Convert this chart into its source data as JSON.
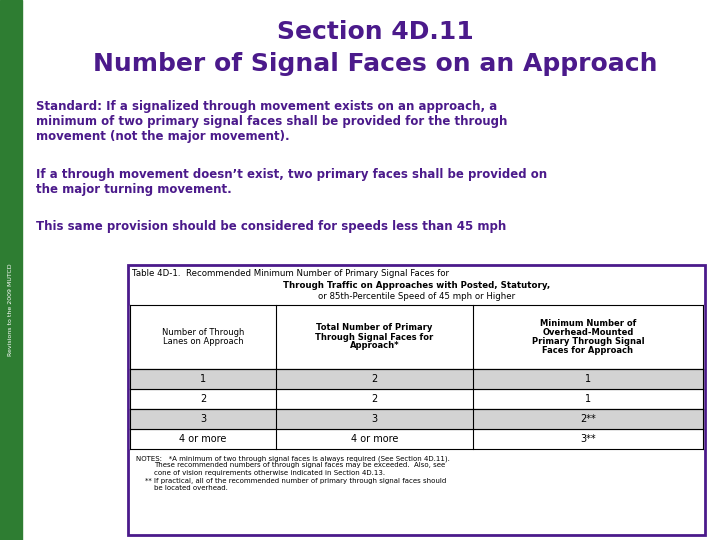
{
  "title_line1": "Section 4D.11",
  "title_line2": "Number of Signal Faces on an Approach",
  "title_color": "#4B1A8B",
  "bg_color": "#FFFFFF",
  "sidebar_color": "#2E7D32",
  "sidebar_text": "Revisions to the 2009 MUTCD",
  "para_color": "#4B1A8B",
  "para1_lines": [
    "Standard: If a signalized through movement exists on an approach, a",
    "minimum of two primary signal faces shall be provided for the through",
    "movement (not the major movement)."
  ],
  "para2_lines": [
    "If a through movement doesn’t exist, two primary faces shall be provided on",
    "the major turning movement."
  ],
  "para3": "This same provision should be considered for speeds less than 45 mph",
  "table_title_line1": "Table 4D-1.  Recommended Minimum Number of Primary Signal Faces for",
  "table_title_line2": "Through Traffic on Approaches with Posted, Statutory,",
  "table_title_line3": "or 85th-Percentile Speed of 45 mph or Higher",
  "table_border_color": "#4B1A8B",
  "col_headers": [
    "Number of Through\nLanes on Approach",
    "Total Number of Primary\nThrough Signal Faces for\nApproach*",
    "Minimum Number of\nOverhead-Mounted\nPrimary Through Signal\nFaces for Approach"
  ],
  "row_data": [
    [
      "1",
      "2",
      "1"
    ],
    [
      "2",
      "2",
      "1"
    ],
    [
      "3",
      "3",
      "2**"
    ],
    [
      "4 or more",
      "4 or more",
      "3**"
    ]
  ],
  "row_shading": [
    "#D3D3D3",
    "#FFFFFF",
    "#D3D3D3",
    "#FFFFFF"
  ],
  "notes": [
    [
      "NOTES:   *A minimum of two through signal faces is always required (See Section 4D.11).",
      0
    ],
    [
      "These recommended numbers of through signal faces may be exceeded.  Also, see",
      18
    ],
    [
      "cone of vision requirements otherwise indicated in Section 4D.13.",
      18
    ],
    [
      "** If practical, all of the recommended number of primary through signal faces should",
      9
    ],
    [
      "be located overhead.",
      18
    ]
  ]
}
